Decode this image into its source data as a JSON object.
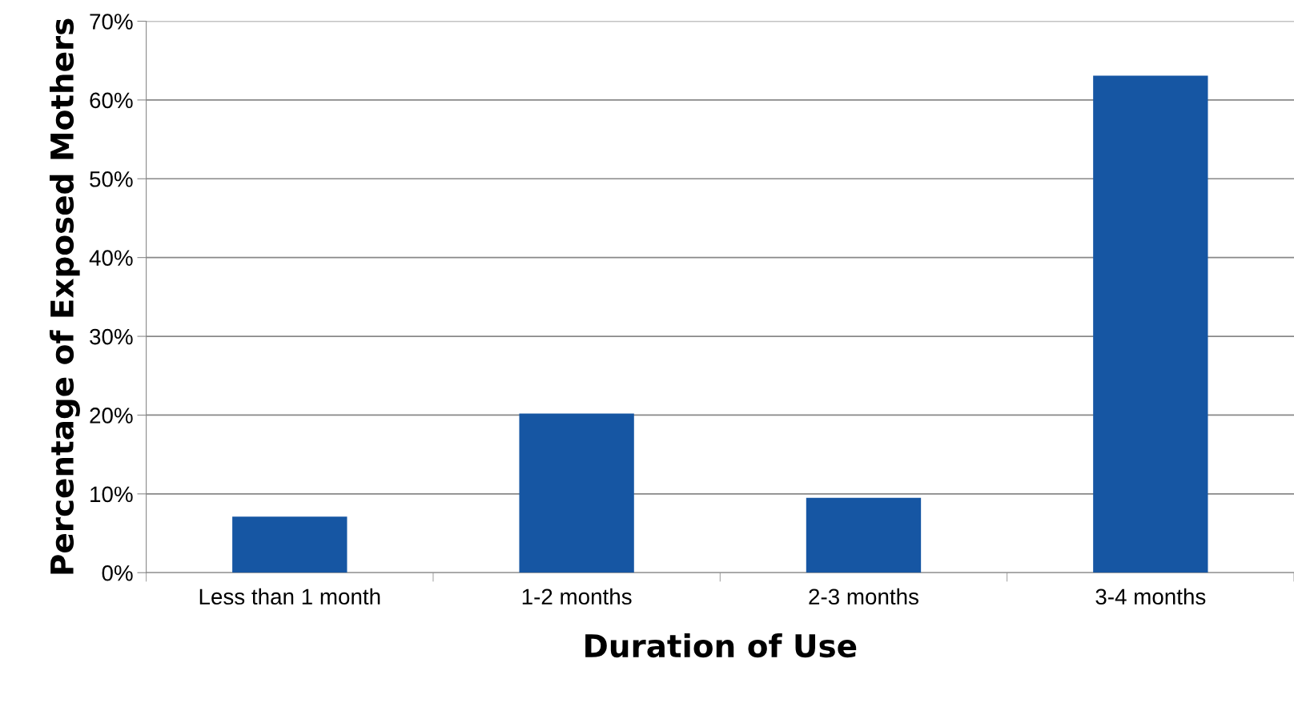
{
  "chart_data": {
    "type": "bar",
    "xlabel": "Duration of Use",
    "ylabel": "Percentage of Exposed Mothers",
    "categories": [
      "Less than 1 month",
      "1-2 months",
      "2-3 months",
      "3-4 months"
    ],
    "values": [
      7.1,
      20.2,
      9.5,
      63.1
    ],
    "color": "#1656a3",
    "ylim": [
      0,
      70
    ],
    "yticks": [
      {
        "value": 0,
        "label": "0%"
      },
      {
        "value": 10,
        "label": "10%"
      },
      {
        "value": 20,
        "label": "20%"
      },
      {
        "value": 30,
        "label": "30%"
      },
      {
        "value": 40,
        "label": "40%"
      },
      {
        "value": 50,
        "label": "50%"
      },
      {
        "value": 60,
        "label": "60%"
      },
      {
        "value": 70,
        "label": "70%"
      }
    ],
    "grid": "y"
  }
}
